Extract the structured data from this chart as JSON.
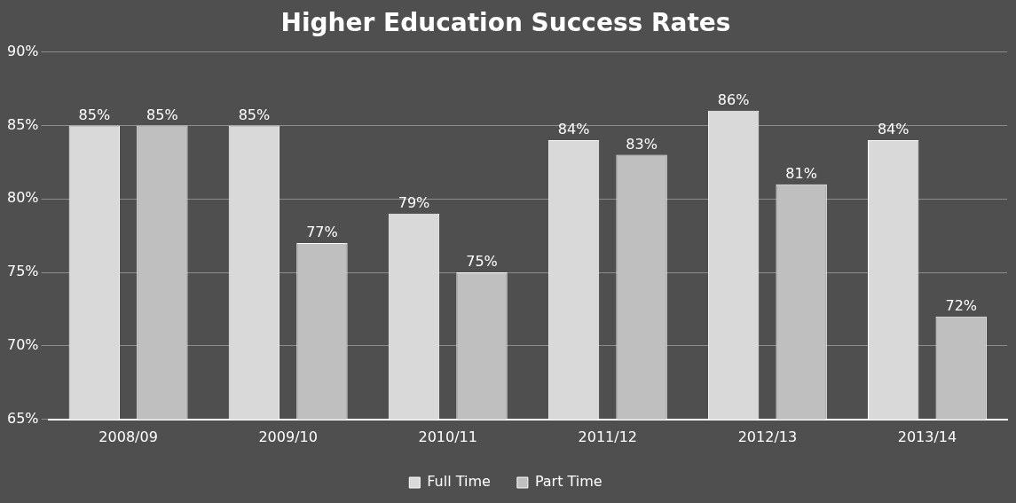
{
  "chart_data": {
    "type": "bar",
    "title": "Higher Education Success Rates",
    "categories": [
      "2008/09",
      "2009/10",
      "2010/11",
      "2011/12",
      "2012/13",
      "2013/14"
    ],
    "series": [
      {
        "name": "Full Time",
        "color": "#d9d9d9",
        "values": [
          85,
          85,
          79,
          84,
          86,
          84
        ],
        "value_labels": [
          "85%",
          "85%",
          "79%",
          "84%",
          "86%",
          "84%"
        ]
      },
      {
        "name": "Part Time",
        "color": "#bfbfbf",
        "values": [
          85,
          77,
          75,
          83,
          81,
          72
        ],
        "value_labels": [
          "85%",
          "77%",
          "75%",
          "83%",
          "81%",
          "72%"
        ]
      }
    ],
    "ylim": [
      65,
      90
    ],
    "yticks": [
      {
        "value": 65,
        "label": "65%"
      },
      {
        "value": 70,
        "label": "70%"
      },
      {
        "value": 75,
        "label": "75%"
      },
      {
        "value": 80,
        "label": "80%"
      },
      {
        "value": 85,
        "label": "85%"
      },
      {
        "value": 90,
        "label": "90%"
      }
    ],
    "grid": "y",
    "legend": "bottom"
  }
}
